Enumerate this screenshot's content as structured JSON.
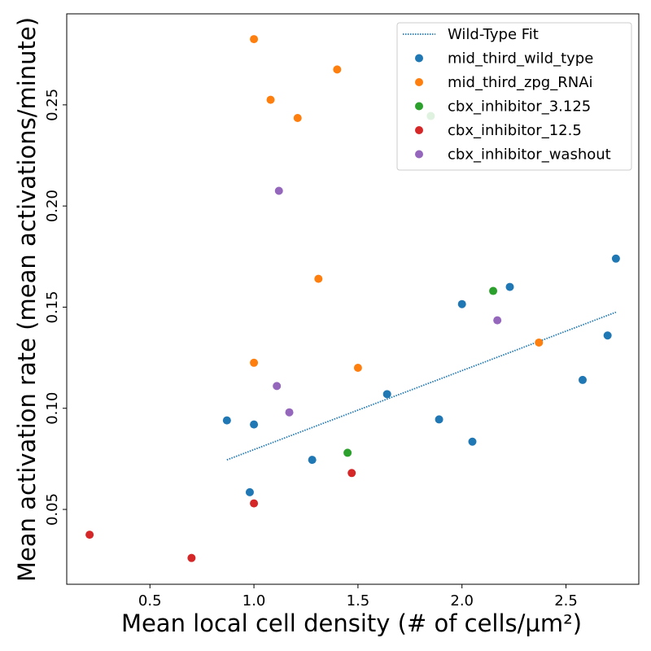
{
  "chart_data": {
    "type": "scatter",
    "xlabel": "Mean local cell density (# of cells/µm²)",
    "ylabel": "Mean activation rate (mean activations/minute)",
    "xlim": [
      0.1,
      2.85
    ],
    "ylim": [
      0.013,
      0.295
    ],
    "xticks": [
      0.5,
      1.0,
      1.5,
      2.0,
      2.5
    ],
    "xtick_labels": [
      "0.5",
      "1.0",
      "1.5",
      "2.0",
      "2.5"
    ],
    "yticks": [
      0.05,
      0.1,
      0.15,
      0.2,
      0.25
    ],
    "ytick_labels": [
      "0.05",
      "0.10",
      "0.15",
      "0.20",
      "0.25"
    ],
    "grid": false,
    "legend_position": "top-right",
    "fit": {
      "name": "Wild-Type Fit",
      "color": "#1f77b4",
      "style": "dotted",
      "x": [
        0.87,
        2.74
      ],
      "y": [
        0.0745,
        0.1475
      ]
    },
    "series": [
      {
        "name": "mid_third_wild_type",
        "color": "#1f77b4",
        "points": [
          [
            0.87,
            0.094
          ],
          [
            1.0,
            0.092
          ],
          [
            0.98,
            0.0585
          ],
          [
            1.28,
            0.0745
          ],
          [
            1.64,
            0.107
          ],
          [
            1.89,
            0.0945
          ],
          [
            2.0,
            0.1515
          ],
          [
            2.05,
            0.0835
          ],
          [
            2.23,
            0.16
          ],
          [
            2.58,
            0.114
          ],
          [
            2.7,
            0.136
          ],
          [
            2.74,
            0.174
          ]
        ]
      },
      {
        "name": "mid_third_zpg_RNAi",
        "color": "#ff7f0e",
        "points": [
          [
            1.0,
            0.2825
          ],
          [
            1.4,
            0.2675
          ],
          [
            1.08,
            0.2525
          ],
          [
            1.21,
            0.2435
          ],
          [
            1.31,
            0.164
          ],
          [
            1.0,
            0.1225
          ],
          [
            1.5,
            0.12
          ],
          [
            2.37,
            0.1325
          ]
        ]
      },
      {
        "name": "cbx_inhibitor_3.125",
        "color": "#2ca02c",
        "points": [
          [
            1.85,
            0.2445
          ],
          [
            2.15,
            0.158
          ],
          [
            1.45,
            0.078
          ]
        ]
      },
      {
        "name": "cbx_inhibitor_12.5",
        "color": "#d62728",
        "points": [
          [
            0.21,
            0.0375
          ],
          [
            0.7,
            0.026
          ],
          [
            1.0,
            0.053
          ],
          [
            1.47,
            0.068
          ]
        ]
      },
      {
        "name": "cbx_inhibitor_washout",
        "color": "#9467bd",
        "points": [
          [
            1.12,
            0.2075
          ],
          [
            2.17,
            0.1435
          ],
          [
            1.11,
            0.111
          ],
          [
            1.17,
            0.098
          ]
        ]
      }
    ]
  }
}
